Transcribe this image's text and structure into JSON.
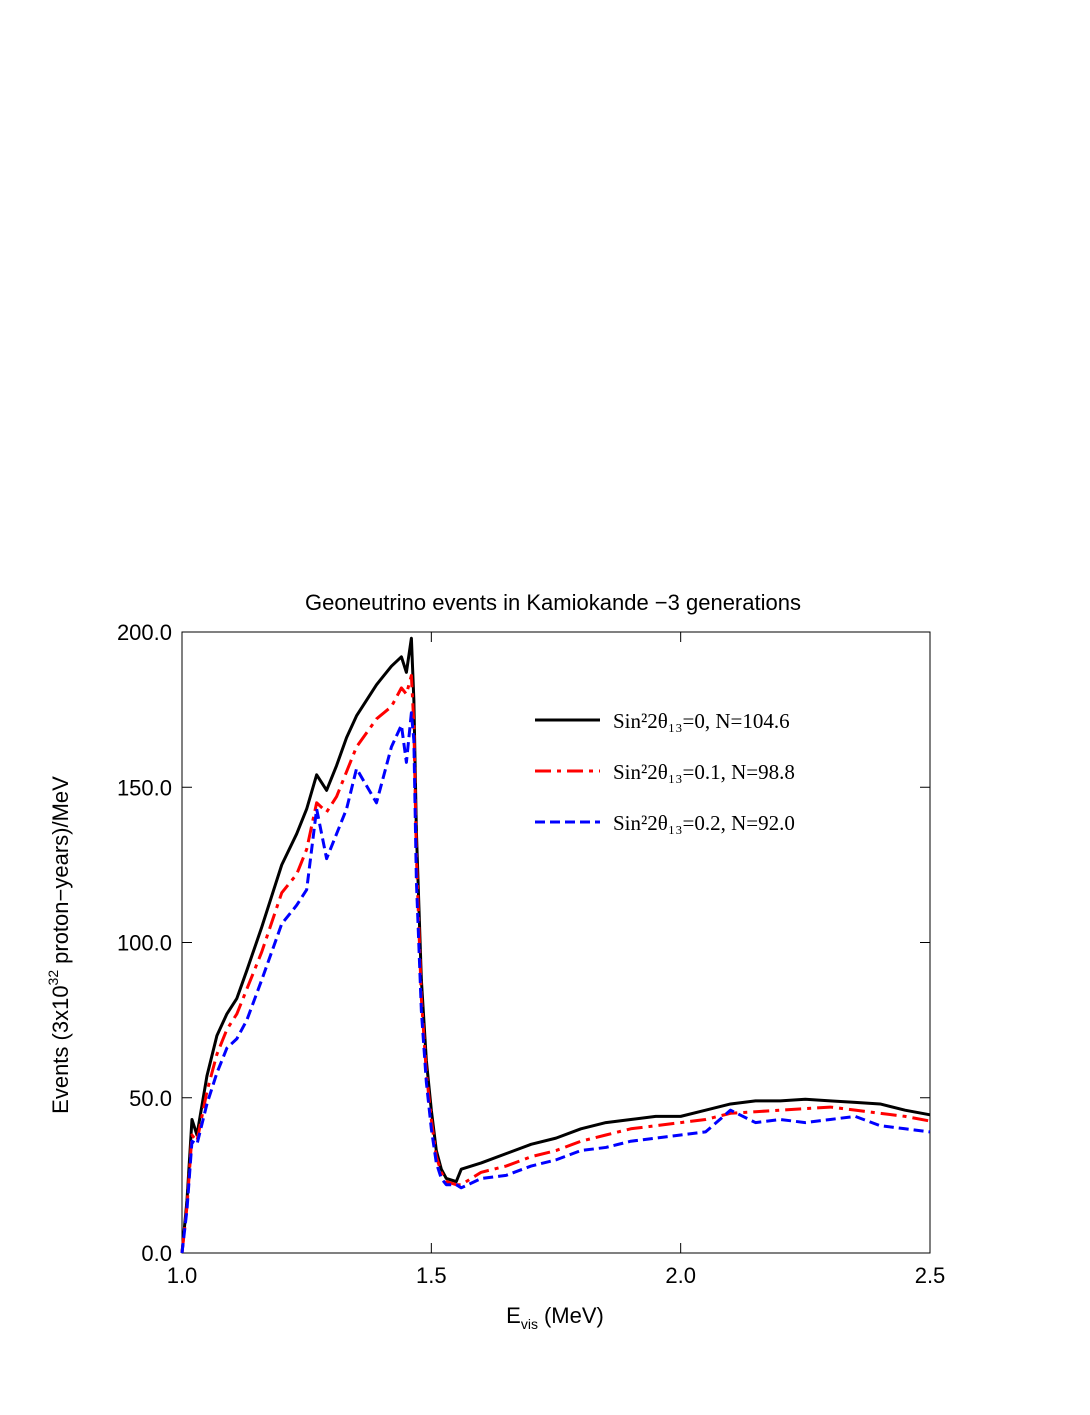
{
  "chart_data": {
    "type": "line",
    "title": "Geoneutrino events in Kamiokande −3 generations",
    "xlabel": [
      "E",
      "vis",
      "(MeV)"
    ],
    "ylabel": [
      "Events (3x10",
      "32",
      "proton−years)/MeV"
    ],
    "xlim": [
      1.0,
      2.5
    ],
    "ylim": [
      0,
      200
    ],
    "xticks": [
      {
        "value": 1,
        "label": "1.0"
      },
      {
        "value": 1.5,
        "label": "1.5"
      },
      {
        "value": 2,
        "label": "2.0"
      },
      {
        "value": 2.5,
        "label": "2.5"
      }
    ],
    "yticks": [
      {
        "value": 0,
        "label": "0.0"
      },
      {
        "value": 50,
        "label": "50.0"
      },
      {
        "value": 100,
        "label": "100.0"
      },
      {
        "value": 150,
        "label": "150.0"
      },
      {
        "value": 200,
        "label": "200.0"
      }
    ],
    "legend": "upper right",
    "grid": false,
    "x": [
      1.0,
      1.01,
      1.02,
      1.03,
      1.05,
      1.07,
      1.09,
      1.11,
      1.13,
      1.16,
      1.2,
      1.23,
      1.25,
      1.27,
      1.29,
      1.31,
      1.33,
      1.35,
      1.39,
      1.42,
      1.44,
      1.45,
      1.46,
      1.465,
      1.47,
      1.48,
      1.49,
      1.5,
      1.51,
      1.52,
      1.53,
      1.55,
      1.56,
      1.6,
      1.65,
      1.7,
      1.75,
      1.8,
      1.85,
      1.9,
      1.95,
      2.0,
      2.05,
      2.1,
      2.15,
      2.2,
      2.25,
      2.3,
      2.35,
      2.4,
      2.45,
      2.5
    ],
    "series": [
      {
        "name": "Sin²2θ₁₃=0, N=104.6",
        "color": "#000000",
        "dash": "solid",
        "values": [
          0,
          17,
          43,
          38,
          57,
          70,
          77,
          82,
          91,
          105,
          125,
          135,
          143,
          154,
          149,
          157,
          166,
          173,
          183,
          189,
          192,
          187,
          198,
          178,
          136,
          88,
          62,
          46,
          33,
          27,
          24,
          23,
          27,
          29,
          32,
          35,
          37,
          40,
          42,
          43,
          44,
          44,
          46,
          48,
          49,
          49,
          49.5,
          49,
          48.5,
          48,
          46,
          44.5
        ]
      },
      {
        "name": "Sin²2θ₁₃=0.1, N=98.8",
        "color": "#ff0000",
        "dash": "dashdot",
        "values": [
          0,
          15,
          38,
          36,
          52,
          64,
          72,
          77,
          85,
          97,
          116,
          122,
          130,
          145,
          142,
          147,
          155,
          163,
          172,
          176,
          182,
          180,
          186,
          170,
          128,
          82,
          58,
          43,
          31,
          26,
          23,
          22,
          22,
          26,
          28,
          31,
          33,
          36,
          38,
          40,
          41,
          42,
          43,
          45,
          45.5,
          46,
          46.5,
          47,
          46,
          45,
          44,
          42.5
        ]
      },
      {
        "name": "Sin²2θ₁₃=0.2, N=92.0",
        "color": "#0000ff",
        "dash": "dashed",
        "values": [
          0,
          14,
          36,
          35,
          48,
          58,
          66,
          69,
          75,
          88,
          106,
          112,
          117,
          143,
          127,
          135,
          143,
          156,
          145,
          163,
          170,
          158,
          174,
          165,
          120,
          78,
          55,
          40,
          29,
          24,
          22,
          22,
          21,
          24,
          25,
          28,
          30,
          33,
          34,
          36,
          37,
          38,
          39,
          46,
          42,
          43,
          42,
          43,
          44,
          41,
          40,
          39
        ]
      }
    ]
  }
}
